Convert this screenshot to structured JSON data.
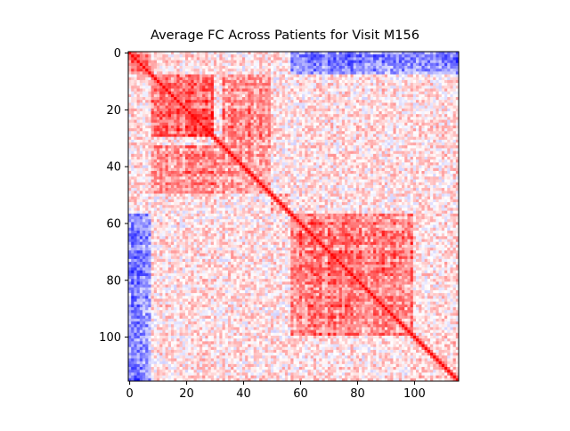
{
  "chart_data": {
    "type": "heatmap",
    "title": "Average FC Across Patients for Visit M156",
    "xlabel": "",
    "ylabel": "",
    "n": 116,
    "colormap": "bwr",
    "colors": {
      "low": "#0000ff",
      "mid": "#ffffff",
      "high": "#ff0000"
    },
    "vlim": [
      -1,
      1
    ],
    "xticks": [
      0,
      20,
      40,
      60,
      80,
      100
    ],
    "yticks": [
      0,
      20,
      40,
      60,
      80,
      100
    ],
    "xtick_labels": [
      "0",
      "20",
      "40",
      "60",
      "80",
      "100"
    ],
    "ytick_labels": [
      "0",
      "20",
      "40",
      "60",
      "80",
      "100"
    ],
    "diagonal_value": 1.0,
    "block_structure": [
      {
        "rows": [
          0,
          8
        ],
        "cols": [
          0,
          8
        ],
        "mean_value": 0.55
      },
      {
        "rows": [
          8,
          30
        ],
        "cols": [
          8,
          30
        ],
        "mean_value": 0.6
      },
      {
        "rows": [
          8,
          30
        ],
        "cols": [
          33,
          50
        ],
        "mean_value": 0.45
      },
      {
        "rows": [
          30,
          50
        ],
        "cols": [
          30,
          50
        ],
        "mean_value": 0.4
      },
      {
        "rows": [
          50,
          57
        ],
        "cols": [
          50,
          57
        ],
        "mean_value": 0.45
      },
      {
        "rows": [
          57,
          100
        ],
        "cols": [
          57,
          100
        ],
        "mean_value": 0.5
      },
      {
        "rows": [
          0,
          8
        ],
        "cols": [
          57,
          116
        ],
        "mean_value": -0.45
      },
      {
        "rows": [
          57,
          116
        ],
        "cols": [
          0,
          8
        ],
        "mean_value": -0.45
      },
      {
        "rows": [
          100,
          116
        ],
        "cols": [
          100,
          116
        ],
        "mean_value": 0.15
      }
    ],
    "grid": false,
    "legend": "none"
  }
}
